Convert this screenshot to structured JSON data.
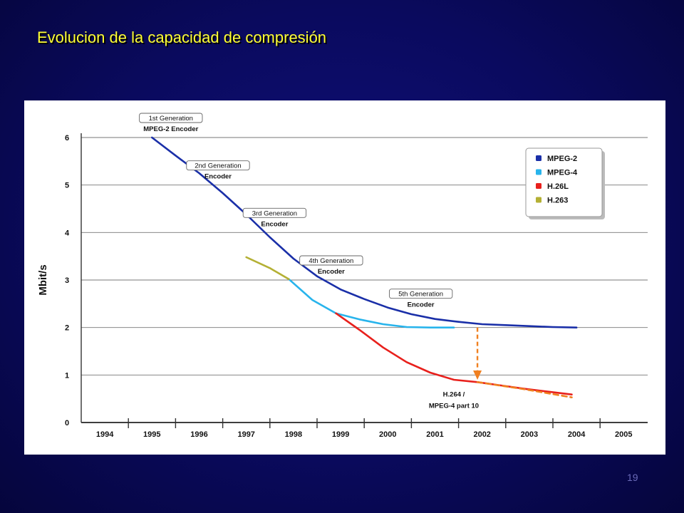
{
  "slide": {
    "title": "Evolucion de la capacidad de compresión",
    "page_number": "19"
  },
  "chart_data": {
    "type": "line",
    "title": "",
    "xlabel": "",
    "ylabel": "Mbit/s",
    "categories": [
      "1994",
      "1995",
      "1996",
      "1997",
      "1998",
      "1999",
      "2000",
      "2001",
      "2002",
      "2003",
      "2004",
      "2005"
    ],
    "ylim": [
      0,
      6
    ],
    "yticks": [
      0,
      1,
      2,
      3,
      4,
      5,
      6
    ],
    "grid": true,
    "legend_position": "top-right",
    "series": [
      {
        "name": "MPEG-2",
        "color": "#1a2fa8",
        "dashed": false,
        "points": [
          [
            1995.0,
            6.0
          ],
          [
            1995.5,
            5.62
          ],
          [
            1996.0,
            5.25
          ],
          [
            1996.5,
            4.83
          ],
          [
            1997.0,
            4.38
          ],
          [
            1997.5,
            3.9
          ],
          [
            1998.0,
            3.45
          ],
          [
            1998.5,
            3.08
          ],
          [
            1999.0,
            2.8
          ],
          [
            1999.5,
            2.6
          ],
          [
            2000.0,
            2.42
          ],
          [
            2000.5,
            2.28
          ],
          [
            2001.0,
            2.18
          ],
          [
            2001.5,
            2.12
          ],
          [
            2002.0,
            2.07
          ],
          [
            2002.5,
            2.05
          ],
          [
            2003.0,
            2.03
          ],
          [
            2003.5,
            2.01
          ],
          [
            2004.0,
            2.0
          ]
        ]
      },
      {
        "name": "MPEG-4",
        "color": "#28b4ec",
        "dashed": false,
        "points": [
          [
            1997.9,
            3.02
          ],
          [
            1998.4,
            2.58
          ],
          [
            1998.9,
            2.3
          ],
          [
            1999.4,
            2.17
          ],
          [
            1999.9,
            2.07
          ],
          [
            2000.4,
            2.01
          ],
          [
            2000.9,
            2.0
          ],
          [
            2001.4,
            2.0
          ]
        ]
      },
      {
        "name": "H.26L",
        "color": "#e8201c",
        "dashed": false,
        "points": [
          [
            1998.9,
            2.3
          ],
          [
            1999.4,
            1.95
          ],
          [
            1999.9,
            1.58
          ],
          [
            2000.4,
            1.27
          ],
          [
            2000.9,
            1.05
          ],
          [
            2001.4,
            0.9
          ],
          [
            2001.9,
            0.85
          ],
          [
            2002.4,
            0.78
          ],
          [
            2002.9,
            0.71
          ],
          [
            2003.4,
            0.65
          ],
          [
            2003.9,
            0.59
          ]
        ]
      },
      {
        "name": "H.263",
        "color": "#b4b034",
        "dashed": false,
        "points": [
          [
            1997.0,
            3.48
          ],
          [
            1997.5,
            3.25
          ],
          [
            1997.9,
            3.02
          ]
        ]
      },
      {
        "name": "",
        "color": "#f08020",
        "dashed": true,
        "points": [
          [
            2001.9,
            0.85
          ],
          [
            2002.9,
            0.7
          ],
          [
            2003.9,
            0.53
          ]
        ]
      }
    ],
    "annotations": [
      {
        "line1": "1st Generation",
        "line2": "MPEG-2 Encoder",
        "x": 1995.4,
        "y": 6.0
      },
      {
        "line1": "2nd Generation",
        "line2": "Encoder",
        "x": 1996.4,
        "y": 5.0
      },
      {
        "line1": "3rd Generation",
        "line2": "Encoder",
        "x": 1997.6,
        "y": 4.0
      },
      {
        "line1": "4th Generation",
        "line2": "Encoder",
        "x": 1998.8,
        "y": 3.0
      },
      {
        "line1": "5th Generation",
        "line2": "Encoder",
        "x": 2000.7,
        "y": 2.3
      },
      {
        "line1": "H.264 /",
        "line2": "MPEG-4 part 10",
        "x": 2001.4,
        "y": 0.5
      }
    ],
    "arrow": {
      "from": [
        2001.9,
        2.0
      ],
      "to": [
        2001.9,
        0.9
      ],
      "color": "#f08020"
    }
  }
}
